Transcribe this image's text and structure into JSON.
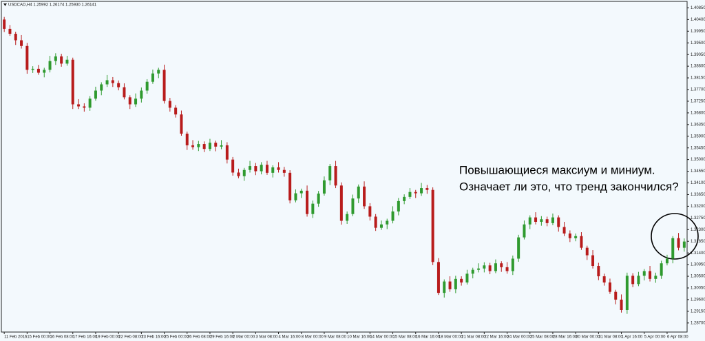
{
  "chart_data": {
    "type": "candlestick",
    "title": "USDCAD,H4 1.25992 1.26174 1.25930 1.26141",
    "annotation": [
      "Повышающиеся максиум и миниум.",
      "Означает ли это, что тренд закончился?"
    ],
    "up_color": "#2f9a2f",
    "down_color": "#b81c1c",
    "categories": [
      "11 Feb 2016",
      null,
      null,
      null,
      "15 Feb 00:00",
      null,
      null,
      null,
      "16 Feb 08:00",
      null,
      null,
      null,
      "17 Feb 16:00",
      null,
      null,
      null,
      "19 Feb 00:00",
      null,
      null,
      null,
      "22 Feb 08:00",
      null,
      null,
      null,
      "23 Feb 16:00",
      null,
      null,
      null,
      "25 Feb 00:00",
      null,
      null,
      null,
      "26 Feb 08:00",
      null,
      null,
      null,
      "29 Feb 16:00",
      null,
      null,
      null,
      "2 Mar 00:00",
      null,
      null,
      null,
      "3 Mar 08:00",
      null,
      null,
      null,
      "4 Mar 16:00",
      null,
      null,
      null,
      "8 Mar 00:00",
      null,
      null,
      null,
      "9 Mar 08:00",
      null,
      null,
      null,
      "10 Mar 16:00",
      null,
      null,
      null,
      "14 Mar 00:00",
      null,
      null,
      null,
      "15 Mar 08:00",
      null,
      null,
      null,
      "16 Mar 16:00",
      null,
      null,
      null,
      "18 Mar 00:00",
      null,
      null,
      null,
      "21 Mar 08:00",
      null,
      null,
      null,
      "22 Mar 16:00",
      null,
      null,
      null,
      "24 Mar 00:00",
      null,
      null,
      null,
      "25 Mar 08:00",
      null,
      null,
      null,
      "28 Mar 16:00",
      null,
      null,
      null,
      "30 Mar 00:00",
      null,
      null,
      null,
      "31 Mar 08:00",
      null,
      null,
      null,
      "1 Apr 16:00",
      null,
      null,
      null,
      "5 Apr 00:00",
      null,
      null,
      null,
      "6 Apr 08:00",
      null,
      null,
      null
    ],
    "open": [
      1.404,
      1.4004,
      1.3985,
      1.396,
      1.3938,
      1.3846,
      1.385,
      1.3835,
      1.3846,
      1.388,
      1.3898,
      1.387,
      1.3885,
      1.3713,
      1.3705,
      1.37,
      1.3735,
      1.3766,
      1.379,
      1.3806,
      1.3795,
      1.3779,
      1.374,
      1.3713,
      1.3735,
      1.3766,
      1.38,
      1.3832,
      1.3846,
      1.3726,
      1.37,
      1.3674,
      1.36,
      1.3555,
      1.3548,
      1.356,
      1.3541,
      1.3565,
      1.355,
      1.3555,
      1.35,
      1.345,
      1.3436,
      1.346,
      1.3475,
      1.3455,
      1.348,
      1.3449,
      1.347,
      1.346,
      1.3449,
      1.3343,
      1.337,
      1.338,
      1.329,
      1.333,
      1.3369,
      1.342,
      1.3475,
      1.34,
      1.3264,
      1.329,
      1.335,
      1.3396,
      1.332,
      1.328,
      1.3237,
      1.325,
      1.3264,
      1.33,
      1.334,
      1.3356,
      1.3375,
      1.337,
      1.339,
      1.3383,
      1.3105,
      1.2986,
      1.303,
      1.3,
      1.304,
      1.3026,
      1.306,
      1.3075,
      1.308,
      1.3092,
      1.307,
      1.31,
      1.3085,
      1.307,
      1.3118,
      1.32,
      1.325,
      1.3277,
      1.326,
      1.327,
      1.3255,
      1.3277,
      1.324,
      1.3215,
      1.3197,
      1.3205,
      1.316,
      1.3131,
      1.309,
      1.305,
      1.3026,
      1.299,
      1.296,
      1.292,
      1.3052,
      1.302,
      1.3052,
      1.307,
      1.304,
      1.3052,
      1.31,
      1.3118,
      1.3197,
      1.316
    ],
    "high": [
      1.405,
      1.4019,
      1.3993,
      1.398,
      1.395,
      1.386,
      1.3865,
      1.3854,
      1.39,
      1.391,
      1.3908,
      1.39,
      1.3893,
      1.3733,
      1.3717,
      1.3745,
      1.3781,
      1.3798,
      1.3826,
      1.3818,
      1.3805,
      1.3794,
      1.3748,
      1.3755,
      1.3778,
      1.381,
      1.3847,
      1.3854,
      1.3866,
      1.3738,
      1.371,
      1.3689,
      1.3608,
      1.3575,
      1.3572,
      1.357,
      1.358,
      1.3573,
      1.3575,
      1.3567,
      1.351,
      1.3465,
      1.3468,
      1.3495,
      1.3487,
      1.349,
      1.3495,
      1.3478,
      1.349,
      1.3472,
      1.3459,
      1.3385,
      1.3388,
      1.34,
      1.3342,
      1.3379,
      1.3435,
      1.3483,
      1.3495,
      1.3412,
      1.33,
      1.3365,
      1.3404,
      1.3416,
      1.3332,
      1.329,
      1.3265,
      1.3272,
      1.332,
      1.3352,
      1.3366,
      1.339,
      1.3383,
      1.341,
      1.3402,
      1.3393,
      1.312,
      1.3038,
      1.305,
      1.3052,
      1.305,
      1.3075,
      1.3083,
      1.31,
      1.3104,
      1.3102,
      1.3115,
      1.3108,
      1.3105,
      1.313,
      1.321,
      1.3265,
      1.3285,
      1.3297,
      1.3282,
      1.328,
      1.3292,
      1.3285,
      1.326,
      1.3227,
      1.3215,
      1.322,
      1.3168,
      1.3151,
      1.3102,
      1.306,
      1.3041,
      1.2998,
      1.298,
      1.3064,
      1.3062,
      1.3067,
      1.3078,
      1.309,
      1.3064,
      1.311,
      1.3133,
      1.3205,
      1.3217,
      1.3196
    ],
    "low": [
      1.3992,
      1.3977,
      1.3942,
      1.3928,
      1.3831,
      1.3834,
      1.3827,
      1.3817,
      1.3836,
      1.3865,
      1.3858,
      1.3862,
      1.3695,
      1.3695,
      1.3685,
      1.3688,
      1.3727,
      1.3748,
      1.378,
      1.378,
      1.3767,
      1.3732,
      1.3695,
      1.3703,
      1.372,
      1.3754,
      1.3792,
      1.3814,
      1.3716,
      1.3685,
      1.3662,
      1.3592,
      1.3537,
      1.3538,
      1.3533,
      1.3529,
      1.3533,
      1.3532,
      1.354,
      1.3485,
      1.3438,
      1.3428,
      1.3418,
      1.345,
      1.344,
      1.3443,
      1.3441,
      1.3431,
      1.345,
      1.3434,
      1.3331,
      1.3335,
      1.3352,
      1.328,
      1.3275,
      1.3318,
      1.3361,
      1.3402,
      1.339,
      1.3249,
      1.3252,
      1.3282,
      1.3332,
      1.331,
      1.3265,
      1.3225,
      1.3229,
      1.3232,
      1.3254,
      1.3285,
      1.3328,
      1.3348,
      1.3352,
      1.336,
      1.3368,
      1.3093,
      1.2978,
      1.2968,
      1.299,
      1.2985,
      1.3014,
      1.3018,
      1.3042,
      1.3065,
      1.3065,
      1.3058,
      1.3062,
      1.3067,
      1.306,
      1.3055,
      1.3106,
      1.3192,
      1.3232,
      1.325,
      1.3245,
      1.3243,
      1.3247,
      1.3222,
      1.3205,
      1.3182,
      1.3185,
      1.3152,
      1.3113,
      1.308,
      1.3035,
      1.3014,
      1.2982,
      1.2942,
      1.291,
      1.2905,
      1.3008,
      1.3012,
      1.3034,
      1.303,
      1.3025,
      1.304,
      1.3092,
      1.31,
      1.315,
      1.3145
    ],
    "close": [
      1.4004,
      1.3985,
      1.396,
      1.3938,
      1.3846,
      1.385,
      1.3835,
      1.3846,
      1.388,
      1.3898,
      1.387,
      1.3885,
      1.3713,
      1.3705,
      1.37,
      1.3735,
      1.3766,
      1.379,
      1.3806,
      1.3795,
      1.3779,
      1.374,
      1.3713,
      1.3735,
      1.3766,
      1.38,
      1.3832,
      1.3846,
      1.3726,
      1.37,
      1.3674,
      1.36,
      1.3555,
      1.3548,
      1.356,
      1.3541,
      1.3565,
      1.355,
      1.3555,
      1.35,
      1.345,
      1.3436,
      1.346,
      1.3475,
      1.3455,
      1.348,
      1.3449,
      1.347,
      1.346,
      1.3449,
      1.3343,
      1.337,
      1.338,
      1.329,
      1.333,
      1.3369,
      1.342,
      1.3475,
      1.34,
      1.3264,
      1.329,
      1.335,
      1.3396,
      1.332,
      1.328,
      1.3237,
      1.325,
      1.3264,
      1.33,
      1.334,
      1.3356,
      1.3375,
      1.337,
      1.339,
      1.3383,
      1.3105,
      1.2986,
      1.303,
      1.3,
      1.304,
      1.3026,
      1.306,
      1.3075,
      1.308,
      1.3092,
      1.307,
      1.31,
      1.3085,
      1.307,
      1.3118,
      1.32,
      1.325,
      1.3277,
      1.326,
      1.327,
      1.3255,
      1.3277,
      1.324,
      1.3215,
      1.3197,
      1.3205,
      1.316,
      1.3131,
      1.309,
      1.305,
      1.3026,
      1.299,
      1.296,
      1.292,
      1.3052,
      1.302,
      1.3052,
      1.307,
      1.304,
      1.3052,
      1.31,
      1.3118,
      1.3197,
      1.316,
      1.3184
    ],
    "ylim": [
      1.2835,
      1.411
    ],
    "yticks": [
      {
        "value": 1.287,
        "label": "1.28700"
      },
      {
        "value": 1.2915,
        "label": "1.29150"
      },
      {
        "value": 1.296,
        "label": "1.29600"
      },
      {
        "value": 1.3005,
        "label": "1.30050"
      },
      {
        "value": 1.305,
        "label": "1.30500"
      },
      {
        "value": 1.3095,
        "label": "1.30950"
      },
      {
        "value": 1.314,
        "label": "1.31400"
      },
      {
        "value": 1.3185,
        "label": "1.31850"
      },
      {
        "value": 1.323,
        "label": "1.32300"
      },
      {
        "value": 1.3275,
        "label": "1.32750"
      },
      {
        "value": 1.332,
        "label": "1.33200"
      },
      {
        "value": 1.3365,
        "label": "1.33650"
      },
      {
        "value": 1.341,
        "label": "1.34100"
      },
      {
        "value": 1.3455,
        "label": "1.34550"
      },
      {
        "value": 1.35,
        "label": "1.35000"
      },
      {
        "value": 1.3545,
        "label": "1.35450"
      },
      {
        "value": 1.359,
        "label": "1.35900"
      },
      {
        "value": 1.3635,
        "label": "1.36350"
      },
      {
        "value": 1.368,
        "label": "1.36800"
      },
      {
        "value": 1.3725,
        "label": "1.37250"
      },
      {
        "value": 1.377,
        "label": "1.37700"
      },
      {
        "value": 1.3815,
        "label": "1.38150"
      },
      {
        "value": 1.386,
        "label": "1.38600"
      },
      {
        "value": 1.3905,
        "label": "1.39050"
      },
      {
        "value": 1.395,
        "label": "1.39500"
      },
      {
        "value": 1.3995,
        "label": "1.39950"
      },
      {
        "value": 1.404,
        "label": "1.40400"
      },
      {
        "value": 1.4085,
        "label": "1.40850"
      }
    ]
  }
}
